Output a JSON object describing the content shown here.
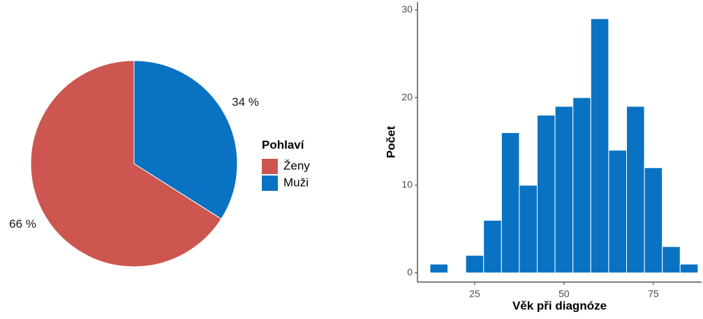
{
  "chart_data": [
    {
      "type": "pie",
      "categories": [
        "Ženy",
        "Muži"
      ],
      "values": [
        66,
        34
      ],
      "value_labels": [
        "66 %",
        "34 %"
      ],
      "colors": [
        "#cd5650",
        "#0a72c2"
      ],
      "legend_title": "Pohlaví"
    },
    {
      "type": "histogram",
      "bins": [
        12.5,
        17.5,
        22.5,
        27.5,
        32.5,
        37.5,
        42.5,
        47.5,
        52.5,
        57.5,
        62.5,
        67.5,
        72.5,
        77.5,
        82.5,
        87.5
      ],
      "values": [
        1,
        0,
        2,
        6,
        16,
        10,
        18,
        19,
        20,
        29,
        14,
        19,
        12,
        3,
        1
      ],
      "color": "#0a72c2",
      "xlim": [
        9,
        88.5
      ],
      "ylim": [
        -1.05,
        30.9
      ],
      "xticks": [
        25,
        50,
        75
      ],
      "yticks": [
        0,
        10,
        20,
        30
      ],
      "x_label": "Věk při diagnóze",
      "y_label": "Počet"
    }
  ]
}
